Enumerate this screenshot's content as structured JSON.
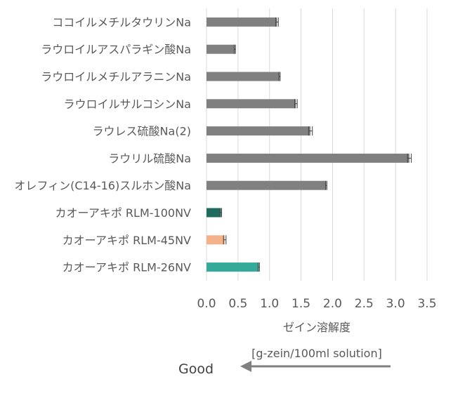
{
  "chart_data": {
    "type": "bar",
    "orientation": "horizontal",
    "categories": [
      "ココイルメチルタウリンNa",
      "ラウロイルアスパラギン酸Na",
      "ラウロイルメチルアラニンNa",
      "ラウロイルサルコシンNa",
      "ラウレス硫酸Na(2)",
      "ラウリル硫酸Na",
      "オレフィン(C14-16)スルホン酸Na",
      "カオーアキポ RLM-100NV",
      "カオーアキポ RLM-45NV",
      "カオーアキポ RLM-26NV"
    ],
    "values": [
      1.12,
      0.45,
      1.16,
      1.42,
      1.65,
      3.22,
      1.9,
      0.23,
      0.29,
      0.83
    ],
    "errors": [
      0.02,
      0.01,
      0.01,
      0.02,
      0.03,
      0.03,
      0.01,
      0.01,
      0.02,
      0.01
    ],
    "colors": [
      "#808080",
      "#808080",
      "#808080",
      "#808080",
      "#808080",
      "#808080",
      "#808080",
      "#1f6b5e",
      "#f4b28a",
      "#35a99a"
    ],
    "xlim": [
      0,
      3.5
    ],
    "xticks": [
      "0.0",
      "0.5",
      "1.0",
      "1.5",
      "2.0",
      "2.5",
      "3.0",
      "3.5"
    ],
    "xlabel": "ゼイン溶解度",
    "xlabel_unit": "[g-zein/100ml solution]",
    "grid": true,
    "annotation": {
      "text": "Good",
      "arrow": "left",
      "color": "#808080"
    }
  }
}
